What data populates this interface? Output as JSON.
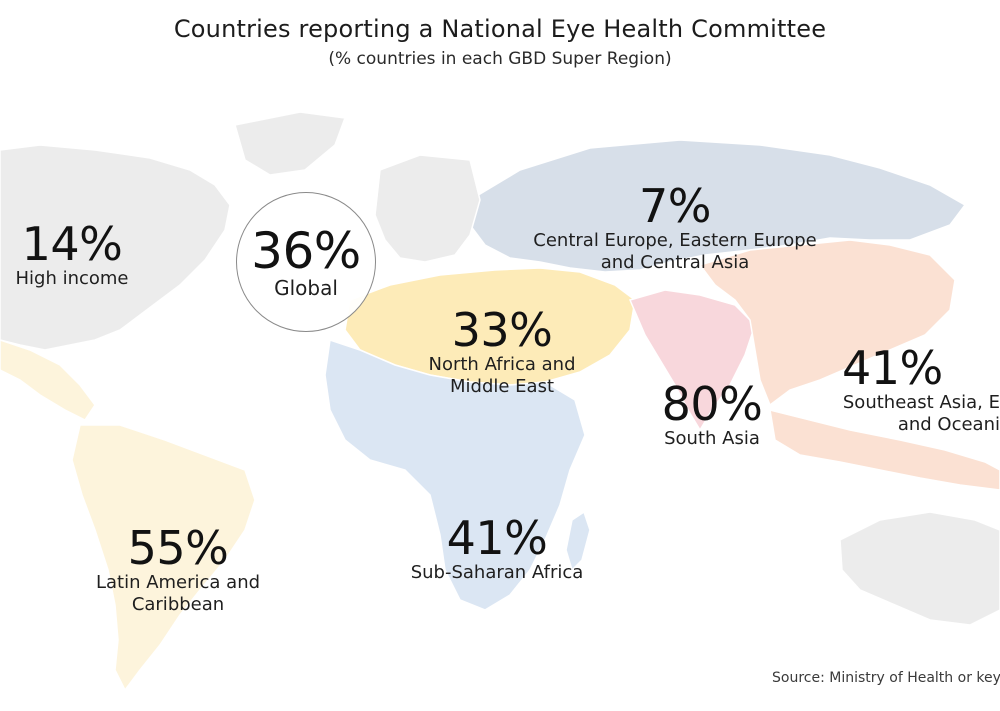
{
  "title": "Countries reporting a National Eye Health Committee",
  "subtitle": "(% countries in each GBD Super Region)",
  "colors": {
    "high_income": "#ececec",
    "latin_america": "#fdf4dc",
    "central_europe_asia": "#d7dfe9",
    "north_africa_me": "#fdebb8",
    "south_asia": "#f8d7dc",
    "southeast_asia_oceania": "#fbe1d3",
    "sub_saharan_africa": "#dbe6f3",
    "border": "#ffffff"
  },
  "global": {
    "value": "36%",
    "label": "Global"
  },
  "regions": [
    {
      "id": "high-income",
      "value": "14%",
      "label": "High income"
    },
    {
      "id": "central-europe",
      "value": "7%",
      "label": "Central Europe, Eastern Europe\nand Central Asia"
    },
    {
      "id": "north-africa",
      "value": "33%",
      "label": "North Africa and\nMiddle East"
    },
    {
      "id": "south-asia",
      "value": "80%",
      "label": "South Asia"
    },
    {
      "id": "southeast-asia",
      "value": "41%",
      "label": "Southeast Asia, E\nand Oceani"
    },
    {
      "id": "sub-saharan",
      "value": "41%",
      "label": "Sub-Saharan Africa"
    },
    {
      "id": "latin-america",
      "value": "55%",
      "label": "Latin America and\nCaribbean"
    }
  ],
  "source": "Source: Ministry of Health or key"
}
